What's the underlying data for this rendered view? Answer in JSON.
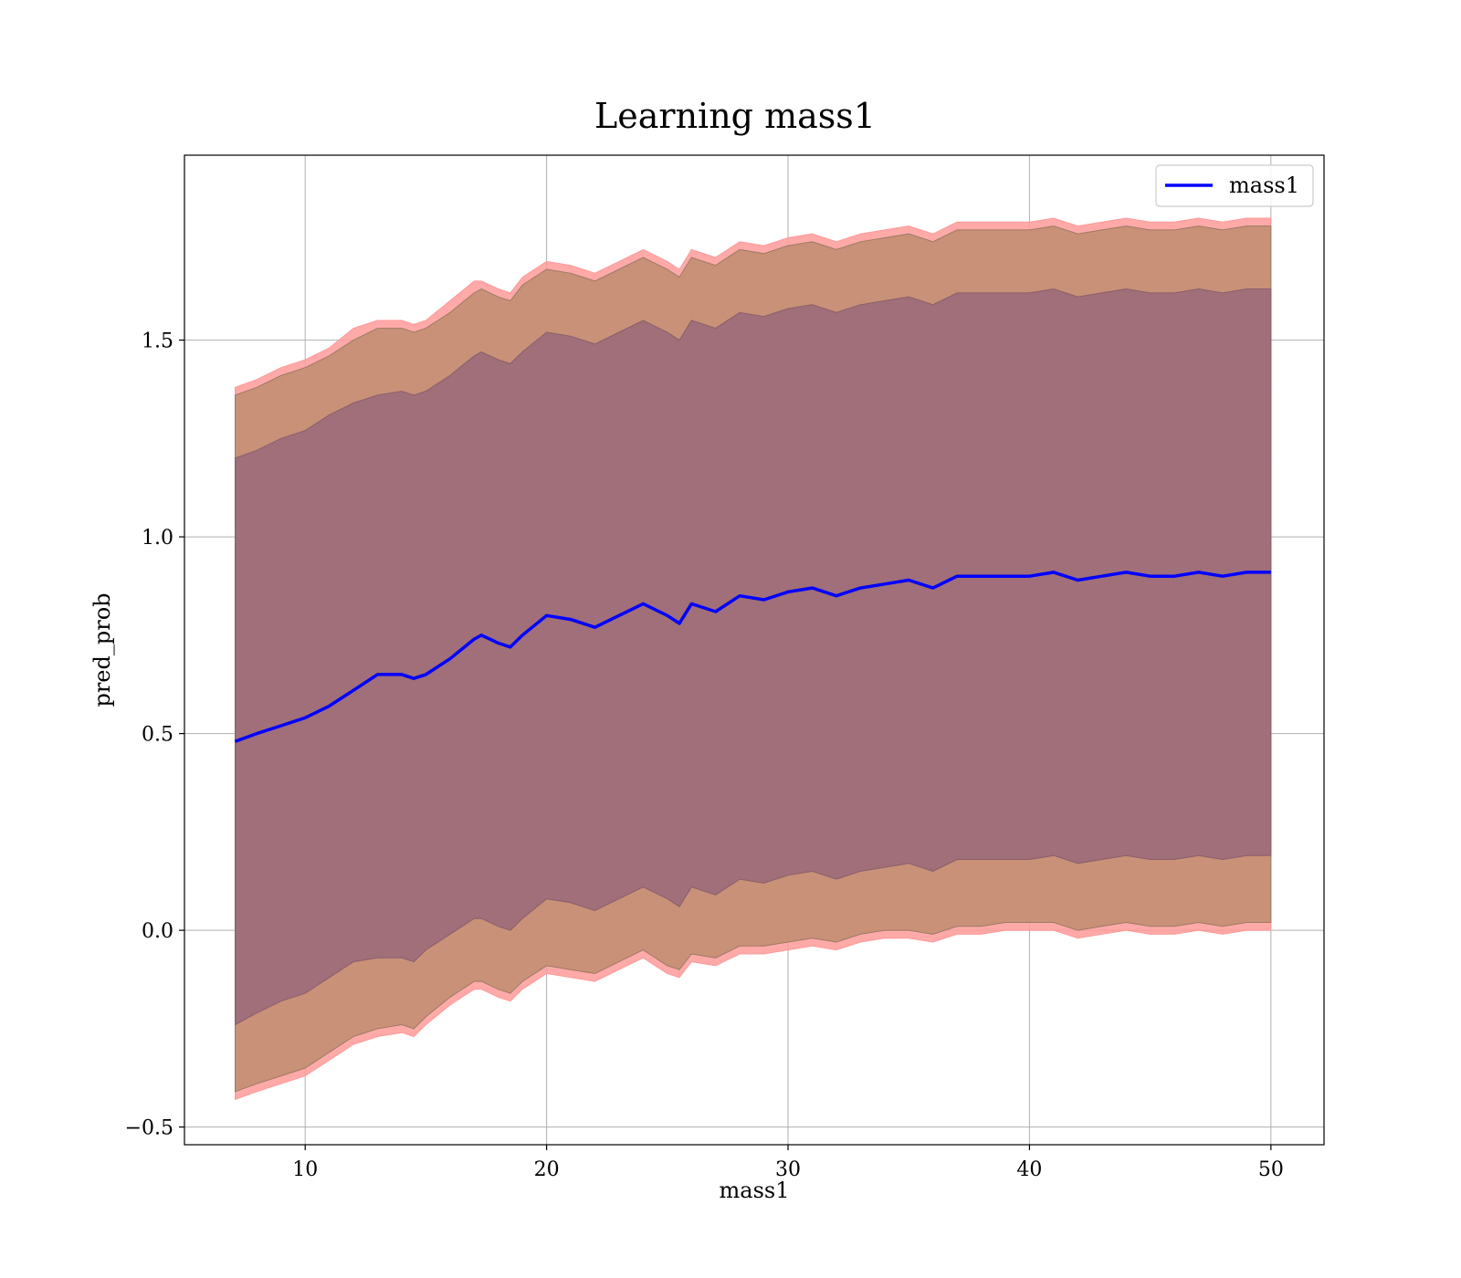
{
  "chart_data": {
    "type": "area",
    "title": "Learning mass1",
    "xlabel": "mass1",
    "ylabel": "pred_prob",
    "xlim": [
      5,
      52.2
    ],
    "ylim": [
      -0.545,
      1.97
    ],
    "xticks": [
      10,
      20,
      30,
      40,
      50
    ],
    "xtick_labels": [
      "10",
      "20",
      "30",
      "40",
      "50"
    ],
    "yticks": [
      -0.5,
      0.0,
      0.5,
      1.0,
      1.5
    ],
    "ytick_labels": [
      "−0.5",
      "0.0",
      "0.5",
      "1.0",
      "1.5"
    ],
    "grid": true,
    "legend": {
      "position": "top-right",
      "entries": [
        "mass1"
      ]
    },
    "colors": {
      "mean_line": "#0000ff",
      "band_outer": "#ff9a9a",
      "band_middle": "#c89178",
      "band_inner": "#a06f79",
      "grid": "#b0b0b0"
    },
    "x": [
      7.1,
      8,
      9,
      10,
      11,
      12,
      13,
      14,
      14.5,
      15,
      16,
      17,
      17.3,
      18,
      18.5,
      19,
      20,
      21,
      22,
      23,
      24,
      25,
      25.5,
      26,
      27,
      28,
      29,
      30,
      31,
      32,
      33,
      34,
      35,
      36,
      37,
      38,
      39,
      40,
      41,
      42,
      43,
      44,
      45,
      46,
      47,
      48,
      49,
      50
    ],
    "series": [
      {
        "name": "mass1",
        "role": "mean",
        "values": [
          0.48,
          0.5,
          0.52,
          0.54,
          0.57,
          0.61,
          0.65,
          0.65,
          0.64,
          0.65,
          0.69,
          0.74,
          0.75,
          0.73,
          0.72,
          0.75,
          0.8,
          0.79,
          0.77,
          0.8,
          0.83,
          0.8,
          0.78,
          0.83,
          0.81,
          0.85,
          0.84,
          0.86,
          0.87,
          0.85,
          0.87,
          0.88,
          0.89,
          0.87,
          0.9,
          0.9,
          0.9,
          0.9,
          0.91,
          0.89,
          0.9,
          0.91,
          0.9,
          0.9,
          0.91,
          0.9,
          0.91,
          0.91
        ]
      },
      {
        "role": "band_1sd",
        "lower": [
          -0.24,
          -0.21,
          -0.18,
          -0.16,
          -0.12,
          -0.08,
          -0.07,
          -0.07,
          -0.08,
          -0.05,
          -0.01,
          0.03,
          0.03,
          0.01,
          0.0,
          0.03,
          0.08,
          0.07,
          0.05,
          0.08,
          0.11,
          0.08,
          0.06,
          0.11,
          0.09,
          0.13,
          0.12,
          0.14,
          0.15,
          0.13,
          0.15,
          0.16,
          0.17,
          0.15,
          0.18,
          0.18,
          0.18,
          0.18,
          0.19,
          0.17,
          0.18,
          0.19,
          0.18,
          0.18,
          0.19,
          0.18,
          0.19,
          0.19
        ],
        "upper": [
          1.2,
          1.22,
          1.25,
          1.27,
          1.31,
          1.34,
          1.36,
          1.37,
          1.36,
          1.37,
          1.41,
          1.46,
          1.47,
          1.45,
          1.44,
          1.47,
          1.52,
          1.51,
          1.49,
          1.52,
          1.55,
          1.52,
          1.5,
          1.55,
          1.53,
          1.57,
          1.56,
          1.58,
          1.59,
          1.57,
          1.59,
          1.6,
          1.61,
          1.59,
          1.62,
          1.62,
          1.62,
          1.62,
          1.63,
          1.61,
          1.62,
          1.63,
          1.62,
          1.62,
          1.63,
          1.62,
          1.63,
          1.63
        ]
      },
      {
        "role": "band_2sd",
        "lower": [
          -0.41,
          -0.39,
          -0.37,
          -0.35,
          -0.31,
          -0.27,
          -0.25,
          -0.24,
          -0.25,
          -0.22,
          -0.17,
          -0.13,
          -0.13,
          -0.15,
          -0.16,
          -0.13,
          -0.09,
          -0.1,
          -0.11,
          -0.08,
          -0.05,
          -0.09,
          -0.1,
          -0.06,
          -0.07,
          -0.04,
          -0.04,
          -0.03,
          -0.02,
          -0.03,
          -0.01,
          0.0,
          0.0,
          -0.01,
          0.01,
          0.01,
          0.02,
          0.02,
          0.02,
          0.0,
          0.01,
          0.02,
          0.01,
          0.01,
          0.02,
          0.01,
          0.02,
          0.02
        ],
        "upper": [
          1.36,
          1.38,
          1.41,
          1.43,
          1.46,
          1.5,
          1.53,
          1.53,
          1.52,
          1.53,
          1.57,
          1.62,
          1.63,
          1.61,
          1.6,
          1.64,
          1.68,
          1.67,
          1.65,
          1.68,
          1.71,
          1.68,
          1.66,
          1.71,
          1.69,
          1.73,
          1.72,
          1.74,
          1.75,
          1.73,
          1.75,
          1.76,
          1.77,
          1.75,
          1.78,
          1.78,
          1.78,
          1.78,
          1.79,
          1.77,
          1.78,
          1.79,
          1.78,
          1.78,
          1.79,
          1.78,
          1.79,
          1.79
        ]
      },
      {
        "role": "band_outer",
        "lower": [
          -0.43,
          -0.41,
          -0.39,
          -0.37,
          -0.33,
          -0.29,
          -0.27,
          -0.26,
          -0.27,
          -0.24,
          -0.19,
          -0.15,
          -0.15,
          -0.17,
          -0.18,
          -0.15,
          -0.11,
          -0.12,
          -0.13,
          -0.1,
          -0.07,
          -0.11,
          -0.12,
          -0.08,
          -0.09,
          -0.06,
          -0.06,
          -0.05,
          -0.04,
          -0.05,
          -0.03,
          -0.02,
          -0.02,
          -0.03,
          -0.01,
          -0.01,
          0.0,
          0.0,
          0.0,
          -0.02,
          -0.01,
          0.0,
          -0.01,
          -0.01,
          0.0,
          -0.01,
          0.0,
          0.0
        ],
        "upper": [
          1.38,
          1.4,
          1.43,
          1.45,
          1.48,
          1.53,
          1.55,
          1.55,
          1.54,
          1.55,
          1.6,
          1.65,
          1.65,
          1.63,
          1.62,
          1.66,
          1.7,
          1.69,
          1.67,
          1.7,
          1.73,
          1.7,
          1.68,
          1.73,
          1.71,
          1.75,
          1.74,
          1.76,
          1.77,
          1.75,
          1.77,
          1.78,
          1.79,
          1.77,
          1.8,
          1.8,
          1.8,
          1.8,
          1.81,
          1.79,
          1.8,
          1.81,
          1.8,
          1.8,
          1.81,
          1.8,
          1.81,
          1.81
        ]
      }
    ]
  }
}
